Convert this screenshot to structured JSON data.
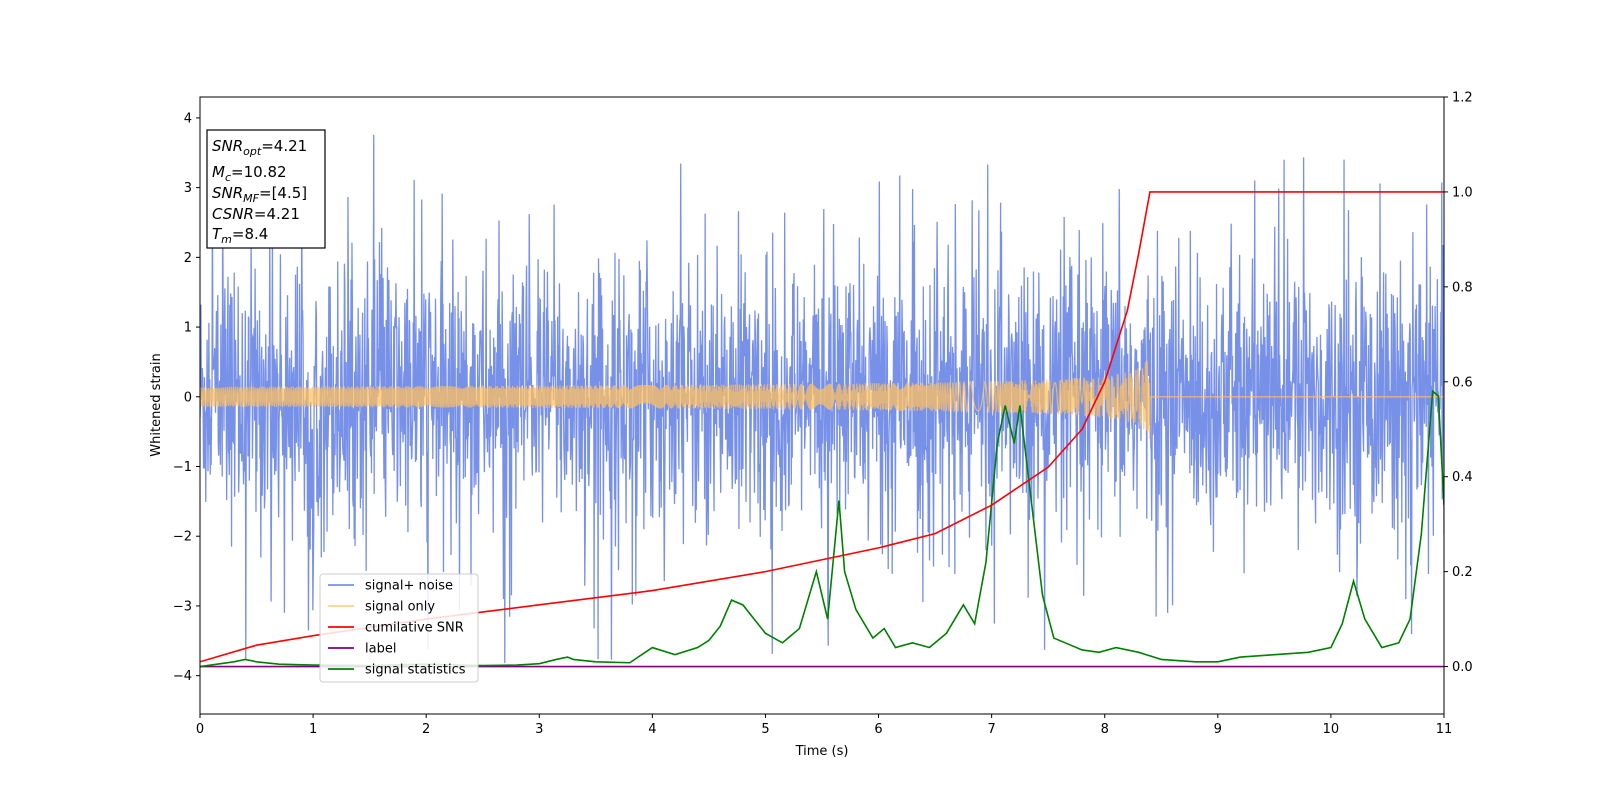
{
  "chart_data": {
    "type": "line",
    "xlabel": "Time (s)",
    "ylabel": "Whitened strain",
    "xlim": [
      0,
      11
    ],
    "ylim_left": [
      -4.55,
      4.3
    ],
    "ylim_right": [
      -0.1,
      1.2
    ],
    "x_ticks": [
      0,
      1,
      2,
      3,
      4,
      5,
      6,
      7,
      8,
      9,
      10,
      11
    ],
    "y_ticks_left": [
      4,
      3,
      2,
      1,
      0,
      -1,
      -2,
      -3,
      -4
    ],
    "y_ticks_left_labels": [
      "4",
      "3",
      "2",
      "1",
      "0",
      "−1",
      "−2",
      "−3",
      "−4"
    ],
    "y_ticks_right": [
      1.2,
      1.0,
      0.8,
      0.6,
      0.4,
      0.2,
      0.0
    ],
    "y_ticks_right_labels": [
      "1.2",
      "1.0",
      "0.8",
      "0.6",
      "0.4",
      "0.2",
      "0.0"
    ],
    "grid": false,
    "legend_position": "lower-left",
    "info_box": {
      "snr_opt": "4.21",
      "mc": "10.82",
      "snr_mf": "[4.5]",
      "csnr": "4.21",
      "tm": "8.4"
    },
    "series": [
      {
        "name": "signal+ noise",
        "axis": "left",
        "color": "#7891e8",
        "kind": "noise",
        "amplitude_approx": 2.3,
        "max_value": 3.92,
        "min_value": -4.15
      },
      {
        "name": "signal only",
        "axis": "left",
        "color": "#ffc060",
        "kind": "chirp",
        "merger_time": 8.4,
        "peak_amplitude": 0.65
      },
      {
        "name": "cumilative SNR",
        "axis": "right",
        "color": "#ff0000",
        "kind": "line",
        "x": [
          0,
          0.5,
          1,
          2,
          3,
          4,
          5,
          6,
          6.5,
          7,
          7.5,
          7.8,
          8.0,
          8.2,
          8.3,
          8.4,
          11
        ],
        "y": [
          0.01,
          0.045,
          0.065,
          0.1,
          0.13,
          0.16,
          0.2,
          0.25,
          0.28,
          0.34,
          0.42,
          0.5,
          0.6,
          0.75,
          0.87,
          1.0,
          1.0
        ]
      },
      {
        "name": "label",
        "axis": "right",
        "color": "#800080",
        "kind": "line",
        "x": [
          0,
          11
        ],
        "y": [
          0,
          0
        ]
      },
      {
        "name": "signal statistics",
        "axis": "right",
        "color": "#008000",
        "kind": "line",
        "x": [
          0,
          0.3,
          0.4,
          0.5,
          0.7,
          1.0,
          1.5,
          2.0,
          2.3,
          2.5,
          2.8,
          3.0,
          3.15,
          3.25,
          3.3,
          3.5,
          3.8,
          4.0,
          4.2,
          4.4,
          4.5,
          4.6,
          4.7,
          4.8,
          4.9,
          5.0,
          5.15,
          5.3,
          5.45,
          5.55,
          5.65,
          5.7,
          5.8,
          5.95,
          6.05,
          6.15,
          6.3,
          6.45,
          6.6,
          6.75,
          6.85,
          6.95,
          7.05,
          7.12,
          7.2,
          7.25,
          7.35,
          7.45,
          7.55,
          7.7,
          7.8,
          7.95,
          8.1,
          8.3,
          8.5,
          8.8,
          9.0,
          9.2,
          9.5,
          9.8,
          10.0,
          10.1,
          10.2,
          10.3,
          10.45,
          10.6,
          10.7,
          10.8,
          10.9,
          10.95,
          11.0
        ],
        "y": [
          0.0,
          0.01,
          0.015,
          0.01,
          0.005,
          0.003,
          0.002,
          0.005,
          0.003,
          0.002,
          0.003,
          0.006,
          0.015,
          0.02,
          0.015,
          0.01,
          0.008,
          0.04,
          0.025,
          0.04,
          0.055,
          0.085,
          0.14,
          0.13,
          0.1,
          0.07,
          0.05,
          0.08,
          0.2,
          0.1,
          0.35,
          0.2,
          0.12,
          0.06,
          0.08,
          0.04,
          0.05,
          0.04,
          0.07,
          0.13,
          0.09,
          0.22,
          0.47,
          0.55,
          0.47,
          0.55,
          0.35,
          0.15,
          0.06,
          0.045,
          0.035,
          0.03,
          0.04,
          0.03,
          0.015,
          0.01,
          0.01,
          0.02,
          0.025,
          0.03,
          0.04,
          0.09,
          0.18,
          0.1,
          0.04,
          0.05,
          0.1,
          0.28,
          0.58,
          0.57,
          0.34
        ]
      }
    ]
  }
}
